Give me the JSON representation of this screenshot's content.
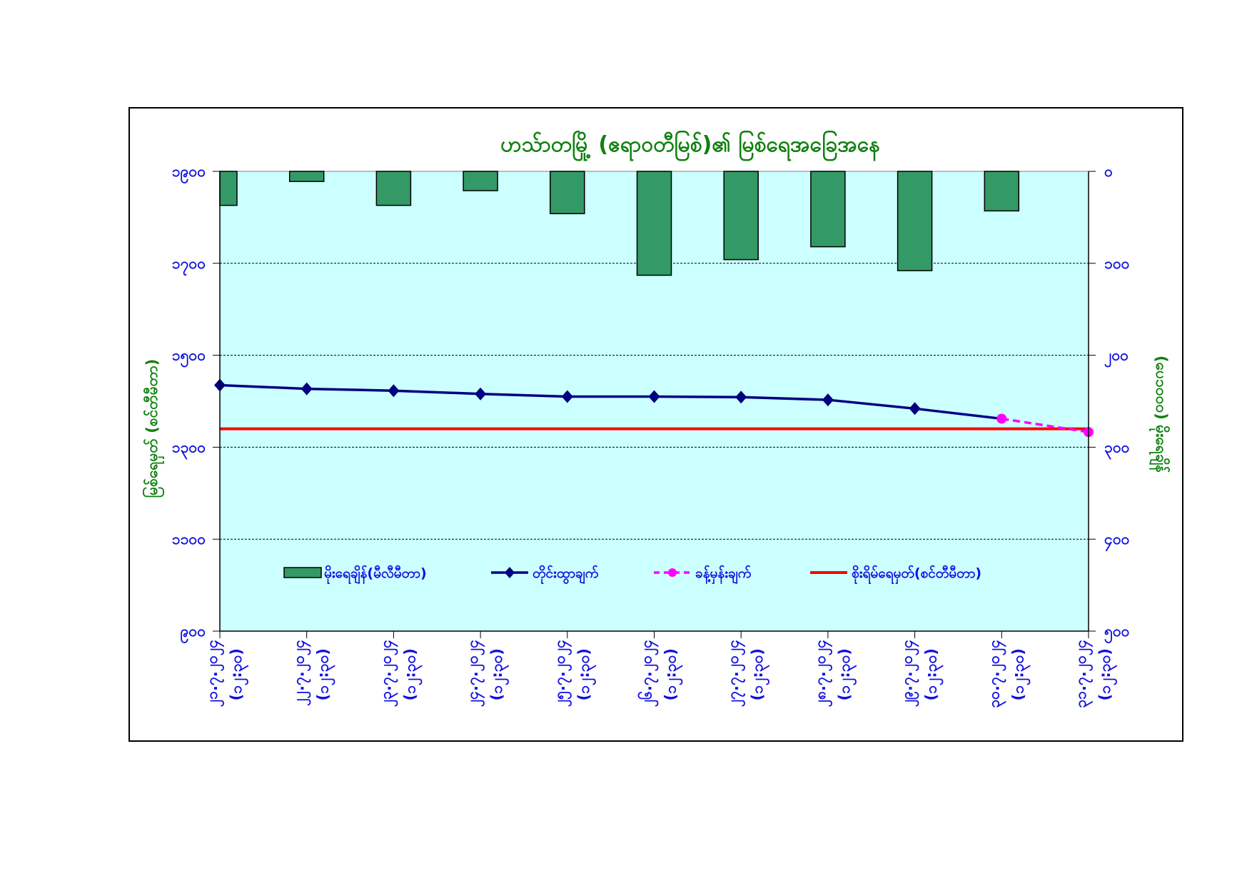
{
  "chart_data": {
    "type": "bar+line",
    "title": "ဟသ်ာတမြို့ (ဧရာဝတီမြစ်)၏ မြစ်ရေအခြေအနေ",
    "ylabel_left": "မြစ်ရေမှတ် (စင်တီမီတာ)",
    "ylabel_right": "(ပေ၁၀၀၀) မိုးရေချိန်",
    "ylim_left": [
      900,
      1900
    ],
    "yticks_left": [
      "၉၀၀",
      "၁၁၀၀",
      "၁၃၀၀",
      "၁၅၀၀",
      "၁၇၀၀",
      "၁၉၀၀"
    ],
    "yticks_left_values": [
      900,
      1100,
      1300,
      1500,
      1700,
      1900
    ],
    "ylim_right_reversed": [
      0,
      500
    ],
    "yticks_right": [
      "၀",
      "၁၀၀",
      "၂၀၀",
      "၃၀၀",
      "၄၀၀",
      "၅၀၀"
    ],
    "yticks_right_values": [
      0,
      100,
      200,
      300,
      400,
      500
    ],
    "grid": true,
    "categories": [
      {
        "date": "၂၁.၇.၂၀၂၄",
        "time": "(၁၂:၃၀)"
      },
      {
        "date": "၂၂.၇.၂၀၂၄",
        "time": "(၁၂:၃၀)"
      },
      {
        "date": "၂၃.၇.၂၀၂၄",
        "time": "(၁၂:၃၀)"
      },
      {
        "date": "၂၄.၇.၂၀၂၄",
        "time": "(၁၂:၃၀)"
      },
      {
        "date": "၂၅.၇.၂၀၂၄",
        "time": "(၁၂:၃၀)"
      },
      {
        "date": "၂၆.၇.၂၀၂၄",
        "time": "(၁၂:၃၀)"
      },
      {
        "date": "၂၇.၇.၂၀၂၄",
        "time": "(၁၂:၃၀)"
      },
      {
        "date": "၂၈.၇.၂၀၂၄",
        "time": "(၁၂:၃၀)"
      },
      {
        "date": "၂၉.၇.၂၀၂၄",
        "time": "(၁၂:၃၀)"
      },
      {
        "date": "၃၀.၇.၂၀၂၄",
        "time": "(၁၂:၃၀)"
      },
      {
        "date": "၃၁.၇.၂၀၂၄",
        "time": "(၁၂:၃၀)"
      }
    ],
    "series": [
      {
        "name": "မိုးရေချိန်(မီလီမီတာ)",
        "kind": "bar",
        "axis": "right",
        "color": "#339966",
        "values": [
          37,
          11,
          37,
          21,
          46,
          113,
          96,
          82,
          108,
          43,
          null
        ]
      },
      {
        "name": "တိုင်းထွာချက်",
        "kind": "line",
        "axis": "left",
        "color": "#000080",
        "values": [
          1435,
          1427,
          1423,
          1416,
          1410,
          1410,
          1409,
          1403,
          1384,
          1362,
          null
        ]
      },
      {
        "name": "ခန့်မှန်းချက်",
        "kind": "line-dashed",
        "axis": "left",
        "color": "#ff00ff",
        "values": [
          null,
          null,
          null,
          null,
          null,
          null,
          null,
          null,
          null,
          1362,
          1333
        ]
      },
      {
        "name": "စိုးရိမ်ရေမှတ်(စင်တီမီတာ)",
        "kind": "hline",
        "axis": "left",
        "color": "#ff0000",
        "value": 1340
      }
    ],
    "legend_position": "bottom-inside",
    "plot_background": "#ccffff"
  }
}
